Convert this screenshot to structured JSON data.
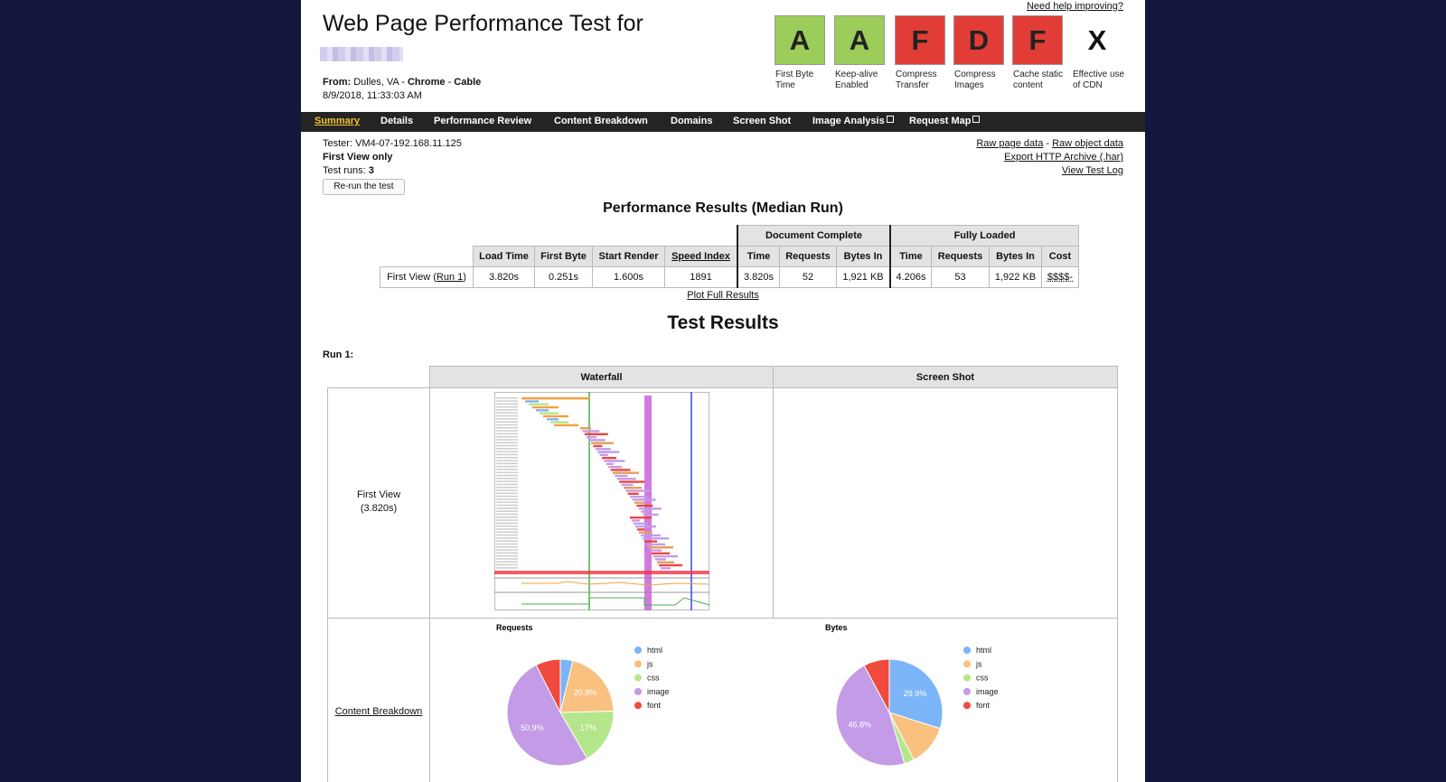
{
  "header": {
    "title": "Web Page Performance Test for",
    "from_label": "From:",
    "location": "Dulles, VA",
    "separator": " - ",
    "browser": "Chrome",
    "connection": "Cable",
    "date": "8/9/2018, 11:33:03 AM",
    "help_link": "Need help improving?"
  },
  "grades": [
    {
      "grade": "A",
      "label": "First Byte Time",
      "color": "#9ccc5a"
    },
    {
      "grade": "A",
      "label": "Keep-alive Enabled",
      "color": "#9ccc5a"
    },
    {
      "grade": "F",
      "label": "Compress Transfer",
      "color": "#e13d36"
    },
    {
      "grade": "D",
      "label": "Compress Images",
      "color": "#e13d36"
    },
    {
      "grade": "F",
      "label": "Cache static content",
      "color": "#e13d36"
    },
    {
      "grade": "X",
      "label": "Effective use of CDN",
      "color": "#ffffff"
    }
  ],
  "nav": [
    {
      "label": "Summary",
      "active": true
    },
    {
      "label": "Details"
    },
    {
      "label": "Performance Review"
    },
    {
      "label": "Content Breakdown"
    },
    {
      "label": "Domains"
    },
    {
      "label": "Screen Shot"
    },
    {
      "label": "Image Analysis",
      "external": true
    },
    {
      "label": "Request Map",
      "external": true
    }
  ],
  "test_info": {
    "tester_label": "Tester:",
    "tester": "VM4-07-192.168.11.125",
    "view": "First View only",
    "runs_label": "Test runs:",
    "runs": "3",
    "rerun_button": "Re-run the test"
  },
  "links": {
    "raw_page_data": "Raw page data",
    "separator": " - ",
    "raw_object_data": "Raw object data",
    "export_har": "Export HTTP Archive (.har)",
    "view_log": "View Test Log"
  },
  "results_table": {
    "title": "Performance Results (Median Run)",
    "group_headers": [
      "Document Complete",
      "Fully Loaded"
    ],
    "headers": [
      "Load Time",
      "First Byte",
      "Start Render",
      "Speed Index",
      "Time",
      "Requests",
      "Bytes In",
      "Time",
      "Requests",
      "Bytes In",
      "Cost"
    ],
    "row_label": "First View (",
    "run_link": "Run 1",
    "row_close": ")",
    "cells": [
      "3.820s",
      "0.251s",
      "1.600s",
      "1891",
      "3.820s",
      "52",
      "1,921 KB",
      "4.206s",
      "53",
      "1,922 KB",
      "$$$$-"
    ],
    "plot_link": "Plot Full Results"
  },
  "test_results": {
    "title": "Test Results",
    "run_label": "Run 1:",
    "col_headers": [
      "Waterfall",
      "Screen Shot"
    ],
    "first_view": "First View",
    "first_view_time": "(3.820s)",
    "content_breakdown": "Content Breakdown"
  },
  "chart_data": [
    {
      "type": "pie",
      "title": "Requests",
      "categories": [
        "html",
        "js",
        "css",
        "image",
        "font"
      ],
      "colors": [
        "#7cb5f7",
        "#f9c07f",
        "#b5e68c",
        "#c39be6",
        "#f0493e"
      ],
      "values": [
        3.8,
        20.8,
        17,
        50.9,
        7.5
      ],
      "value_labels": [
        null,
        "20.8%",
        "17%",
        "50.9%",
        null
      ]
    },
    {
      "type": "pie",
      "title": "Bytes",
      "categories": [
        "html",
        "js",
        "css",
        "image",
        "font"
      ],
      "colors": [
        "#7cb5f7",
        "#f9c07f",
        "#b5e68c",
        "#c39be6",
        "#f0493e"
      ],
      "values": [
        29.9,
        12.5,
        3,
        46.8,
        7.8
      ],
      "value_labels": [
        "29.9%",
        null,
        null,
        "46.8%",
        null
      ]
    }
  ]
}
